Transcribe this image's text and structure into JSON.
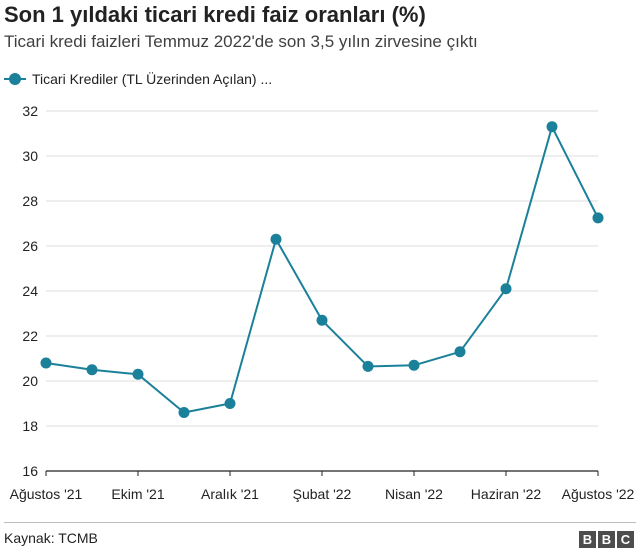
{
  "header": {
    "title": "Son 1 yıldaki ticari kredi faiz oranları (%)",
    "subtitle": "Ticari kredi faizleri Temmuz 2022'de son 3,5 yılın zirvesine çıktı"
  },
  "colors": {
    "series": "#1b8099",
    "grid": "#dcdcdc",
    "axis": "#222222",
    "text": "#222222"
  },
  "chart_data": {
    "type": "line",
    "title": "Son 1 yıldaki ticari kredi faiz oranları (%)",
    "subtitle": "Ticari kredi faizleri Temmuz 2022'de son 3,5 yılın zirvesine çıktı",
    "xlabel": "",
    "ylabel": "",
    "ylim": [
      16,
      32
    ],
    "yticks": [
      16,
      18,
      20,
      22,
      24,
      26,
      28,
      30,
      32
    ],
    "grid": true,
    "legend": "top-left",
    "x": [
      "2021-08",
      "2021-09",
      "2021-10",
      "2021-11",
      "2021-12",
      "2022-01",
      "2022-02",
      "2022-03",
      "2022-04",
      "2022-05",
      "2022-06",
      "2022-07",
      "2022-08"
    ],
    "xticks": [
      {
        "index": 0,
        "label": "Ağustos '21"
      },
      {
        "index": 2,
        "label": "Ekim '21"
      },
      {
        "index": 4,
        "label": "Aralık '21"
      },
      {
        "index": 6,
        "label": "Şubat '22"
      },
      {
        "index": 8,
        "label": "Nisan '22"
      },
      {
        "index": 10,
        "label": "Haziran '22"
      },
      {
        "index": 12,
        "label": "Ağustos '22"
      }
    ],
    "series": [
      {
        "name": "Ticari Krediler (TL Üzerinden Açılan) ...",
        "values": [
          20.8,
          20.5,
          20.3,
          18.6,
          19.0,
          26.3,
          22.7,
          20.65,
          20.7,
          21.3,
          24.1,
          31.3,
          27.25
        ]
      }
    ]
  },
  "footer": {
    "source": "Kaynak: TCMB",
    "logo_letters": [
      "B",
      "B",
      "C"
    ]
  }
}
